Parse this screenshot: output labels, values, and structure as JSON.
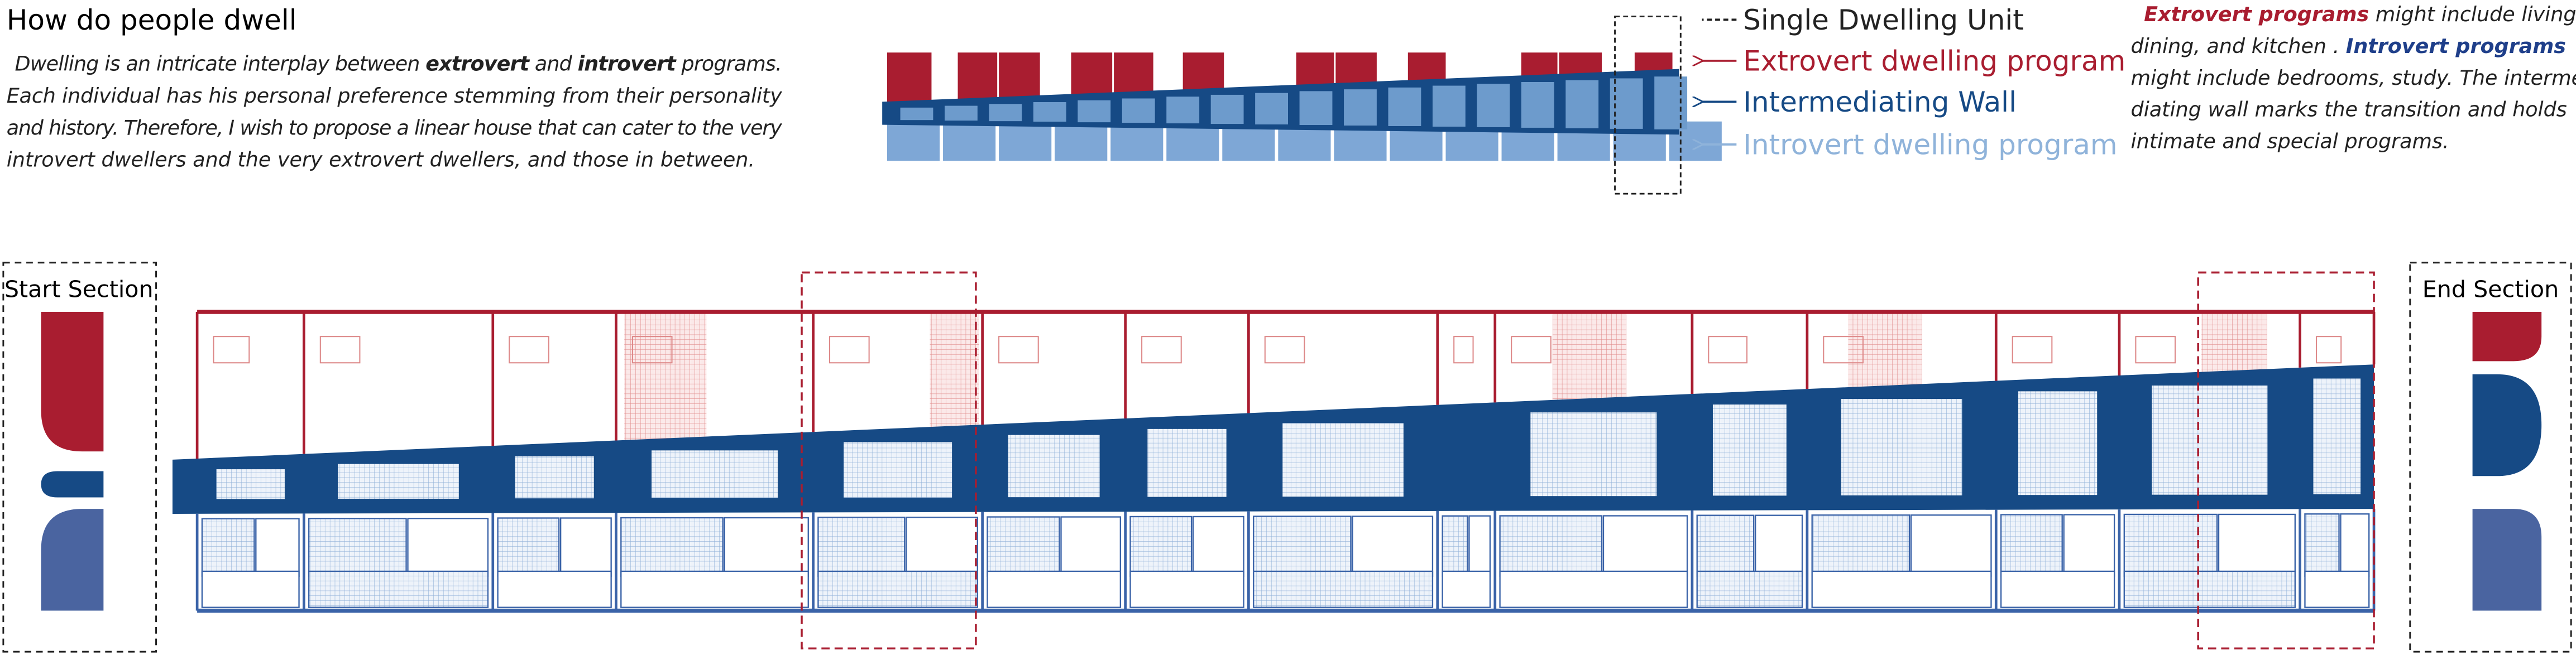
{
  "header": {
    "title": "How do people dwell",
    "intro": [
      [
        {
          "text": "Dwelling is an intricate interplay between ",
          "bold": false
        },
        {
          "text": "extrovert",
          "bold": true
        },
        {
          "text": " and ",
          "bold": false
        },
        {
          "text": "introvert",
          "bold": true
        },
        {
          "text": " programs.",
          "bold": false
        }
      ],
      [
        {
          "text": "Each individual has his personal preference stemming from their  personality",
          "bold": false
        }
      ],
      [
        {
          "text": "and history. Therefore, I wish to propose a linear house that can cater to the very",
          "bold": false
        }
      ],
      [
        {
          "text": "introvert dwellers and the very extrovert dwellers, and those in between.",
          "bold": false
        }
      ]
    ]
  },
  "legend": [
    "Single Dwelling Unit",
    "Extrovert dwelling program",
    "Intermediating Wall",
    "Introvert dwelling program"
  ],
  "note": [
    [
      {
        "text": "Extrovert programs",
        "emphasis": "extrovert"
      },
      {
        "text": " might include living,",
        "emphasis": "none"
      }
    ],
    [
      {
        "text": "dining, and kitchen . ",
        "emphasis": "none"
      },
      {
        "text": "Introvert programs",
        "emphasis": "introvert"
      }
    ],
    [
      {
        "text": "might include bedrooms, study. The interme-",
        "emphasis": "none"
      }
    ],
    [
      {
        "text": "diating wall marks the transition and holds",
        "emphasis": "none"
      }
    ],
    [
      {
        "text": "intimate and special programs.",
        "emphasis": "none"
      }
    ]
  ],
  "sections": {
    "start": "Start Section",
    "end": "End Section"
  }
}
